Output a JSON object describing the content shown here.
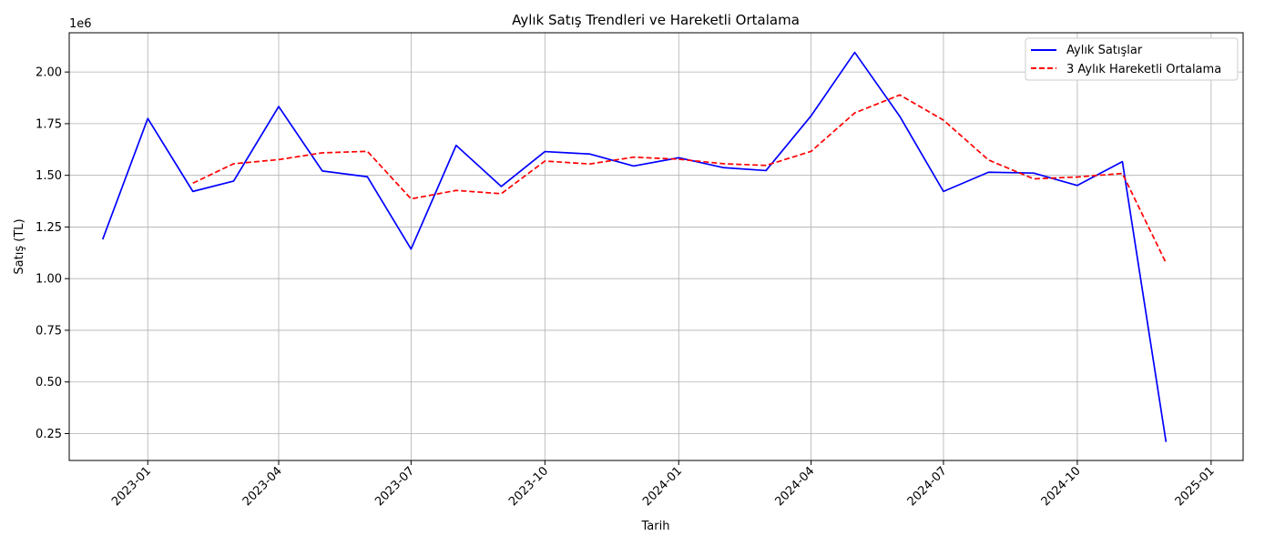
{
  "chart_data": {
    "type": "line",
    "title": "Aylık Satış Trendleri ve Hareketli Ortalama",
    "xlabel": "Tarih",
    "ylabel": "Satış (TL)",
    "y_offset_text": "1e6",
    "ylim": [
      0.12,
      2.19
    ],
    "xlim": [
      "2022-11-08",
      "2025-01-23"
    ],
    "grid": true,
    "legend_position": "upper right",
    "x_ticks": [
      "2023-01",
      "2023-04",
      "2023-07",
      "2023-10",
      "2024-01",
      "2024-04",
      "2024-07",
      "2024-10",
      "2025-01"
    ],
    "y_ticks": [
      "0.25",
      "0.50",
      "0.75",
      "1.00",
      "1.25",
      "1.50",
      "1.75",
      "2.00"
    ],
    "x": [
      "2022-12-01",
      "2023-01-01",
      "2023-02-01",
      "2023-03-01",
      "2023-04-01",
      "2023-05-01",
      "2023-06-01",
      "2023-07-01",
      "2023-08-01",
      "2023-09-01",
      "2023-10-01",
      "2023-11-01",
      "2023-12-01",
      "2024-01-01",
      "2024-02-01",
      "2024-03-01",
      "2024-04-01",
      "2024-05-01",
      "2024-06-01",
      "2024-07-01",
      "2024-08-01",
      "2024-09-01",
      "2024-10-01",
      "2024-11-01",
      "2024-12-01"
    ],
    "series": [
      {
        "name": "Aylık Satışlar",
        "color": "#0000ff",
        "style": "solid",
        "values": [
          1.19,
          1.775,
          1.422,
          1.472,
          1.833,
          1.521,
          1.493,
          1.143,
          1.645,
          1.446,
          1.615,
          1.603,
          1.545,
          1.585,
          1.537,
          1.523,
          1.788,
          2.095,
          1.785,
          1.422,
          1.515,
          1.511,
          1.451,
          1.566,
          0.21
        ]
      },
      {
        "name": "3 Aylık Hareketli Ortalama",
        "color": "#ff0000",
        "style": "dashed",
        "values": [
          null,
          null,
          1.462,
          1.556,
          1.576,
          1.609,
          1.616,
          1.386,
          1.427,
          1.411,
          1.569,
          1.555,
          1.588,
          1.578,
          1.556,
          1.548,
          1.616,
          1.802,
          1.889,
          1.767,
          1.574,
          1.483,
          1.492,
          1.509,
          1.076
        ]
      }
    ]
  }
}
